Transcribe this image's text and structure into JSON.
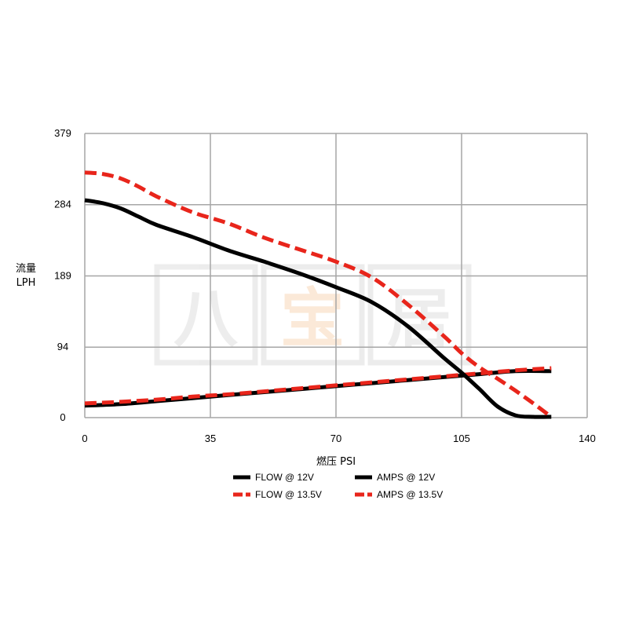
{
  "chart_data": {
    "type": "line",
    "xlabel": "燃压 PSI",
    "ylabel_line1": "流量",
    "ylabel_line2": "LPH",
    "xlim": [
      0,
      140
    ],
    "ylim": [
      0,
      379
    ],
    "x_ticks": [
      0,
      35,
      70,
      105,
      140
    ],
    "y_ticks": [
      0,
      94,
      189,
      284,
      379
    ],
    "grid": true,
    "legend_position": "bottom",
    "series": [
      {
        "name": "FLOW @ 12V",
        "color": "#000000",
        "dashed": false,
        "x": [
          0,
          5,
          10,
          15,
          20,
          30,
          40,
          50,
          60,
          70,
          80,
          90,
          100,
          105,
          110,
          115,
          120,
          125,
          130
        ],
        "y": [
          290,
          286,
          279,
          268,
          257,
          241,
          223,
          208,
          192,
          174,
          154,
          122,
          80,
          60,
          38,
          15,
          3,
          1,
          1
        ]
      },
      {
        "name": "FLOW @ 13.5V",
        "color": "#e8251b",
        "dashed": true,
        "x": [
          0,
          5,
          10,
          15,
          20,
          30,
          40,
          50,
          60,
          70,
          80,
          90,
          100,
          105,
          110,
          115,
          120,
          125,
          130
        ],
        "y": [
          327,
          325,
          319,
          308,
          295,
          274,
          259,
          240,
          224,
          208,
          187,
          151,
          109,
          86,
          67,
          52,
          36,
          19,
          1
        ]
      },
      {
        "name": "AMPS @ 12V",
        "color": "#000000",
        "dashed": false,
        "x": [
          0,
          10,
          20,
          30,
          40,
          50,
          60,
          70,
          80,
          90,
          100,
          110,
          120,
          130
        ],
        "y": [
          16,
          18,
          22,
          26,
          30,
          34,
          38,
          42,
          46,
          50,
          54,
          58,
          62,
          62
        ]
      },
      {
        "name": "AMPS @ 13.5V",
        "color": "#e8251b",
        "dashed": true,
        "x": [
          0,
          10,
          20,
          30,
          40,
          50,
          60,
          70,
          80,
          90,
          100,
          110,
          120,
          130
        ],
        "y": [
          19,
          21,
          24,
          28,
          31,
          35,
          39,
          43,
          47,
          51,
          55,
          59,
          63,
          66
        ]
      }
    ]
  },
  "watermark": {
    "characters": [
      "八",
      "宝",
      "居"
    ]
  }
}
